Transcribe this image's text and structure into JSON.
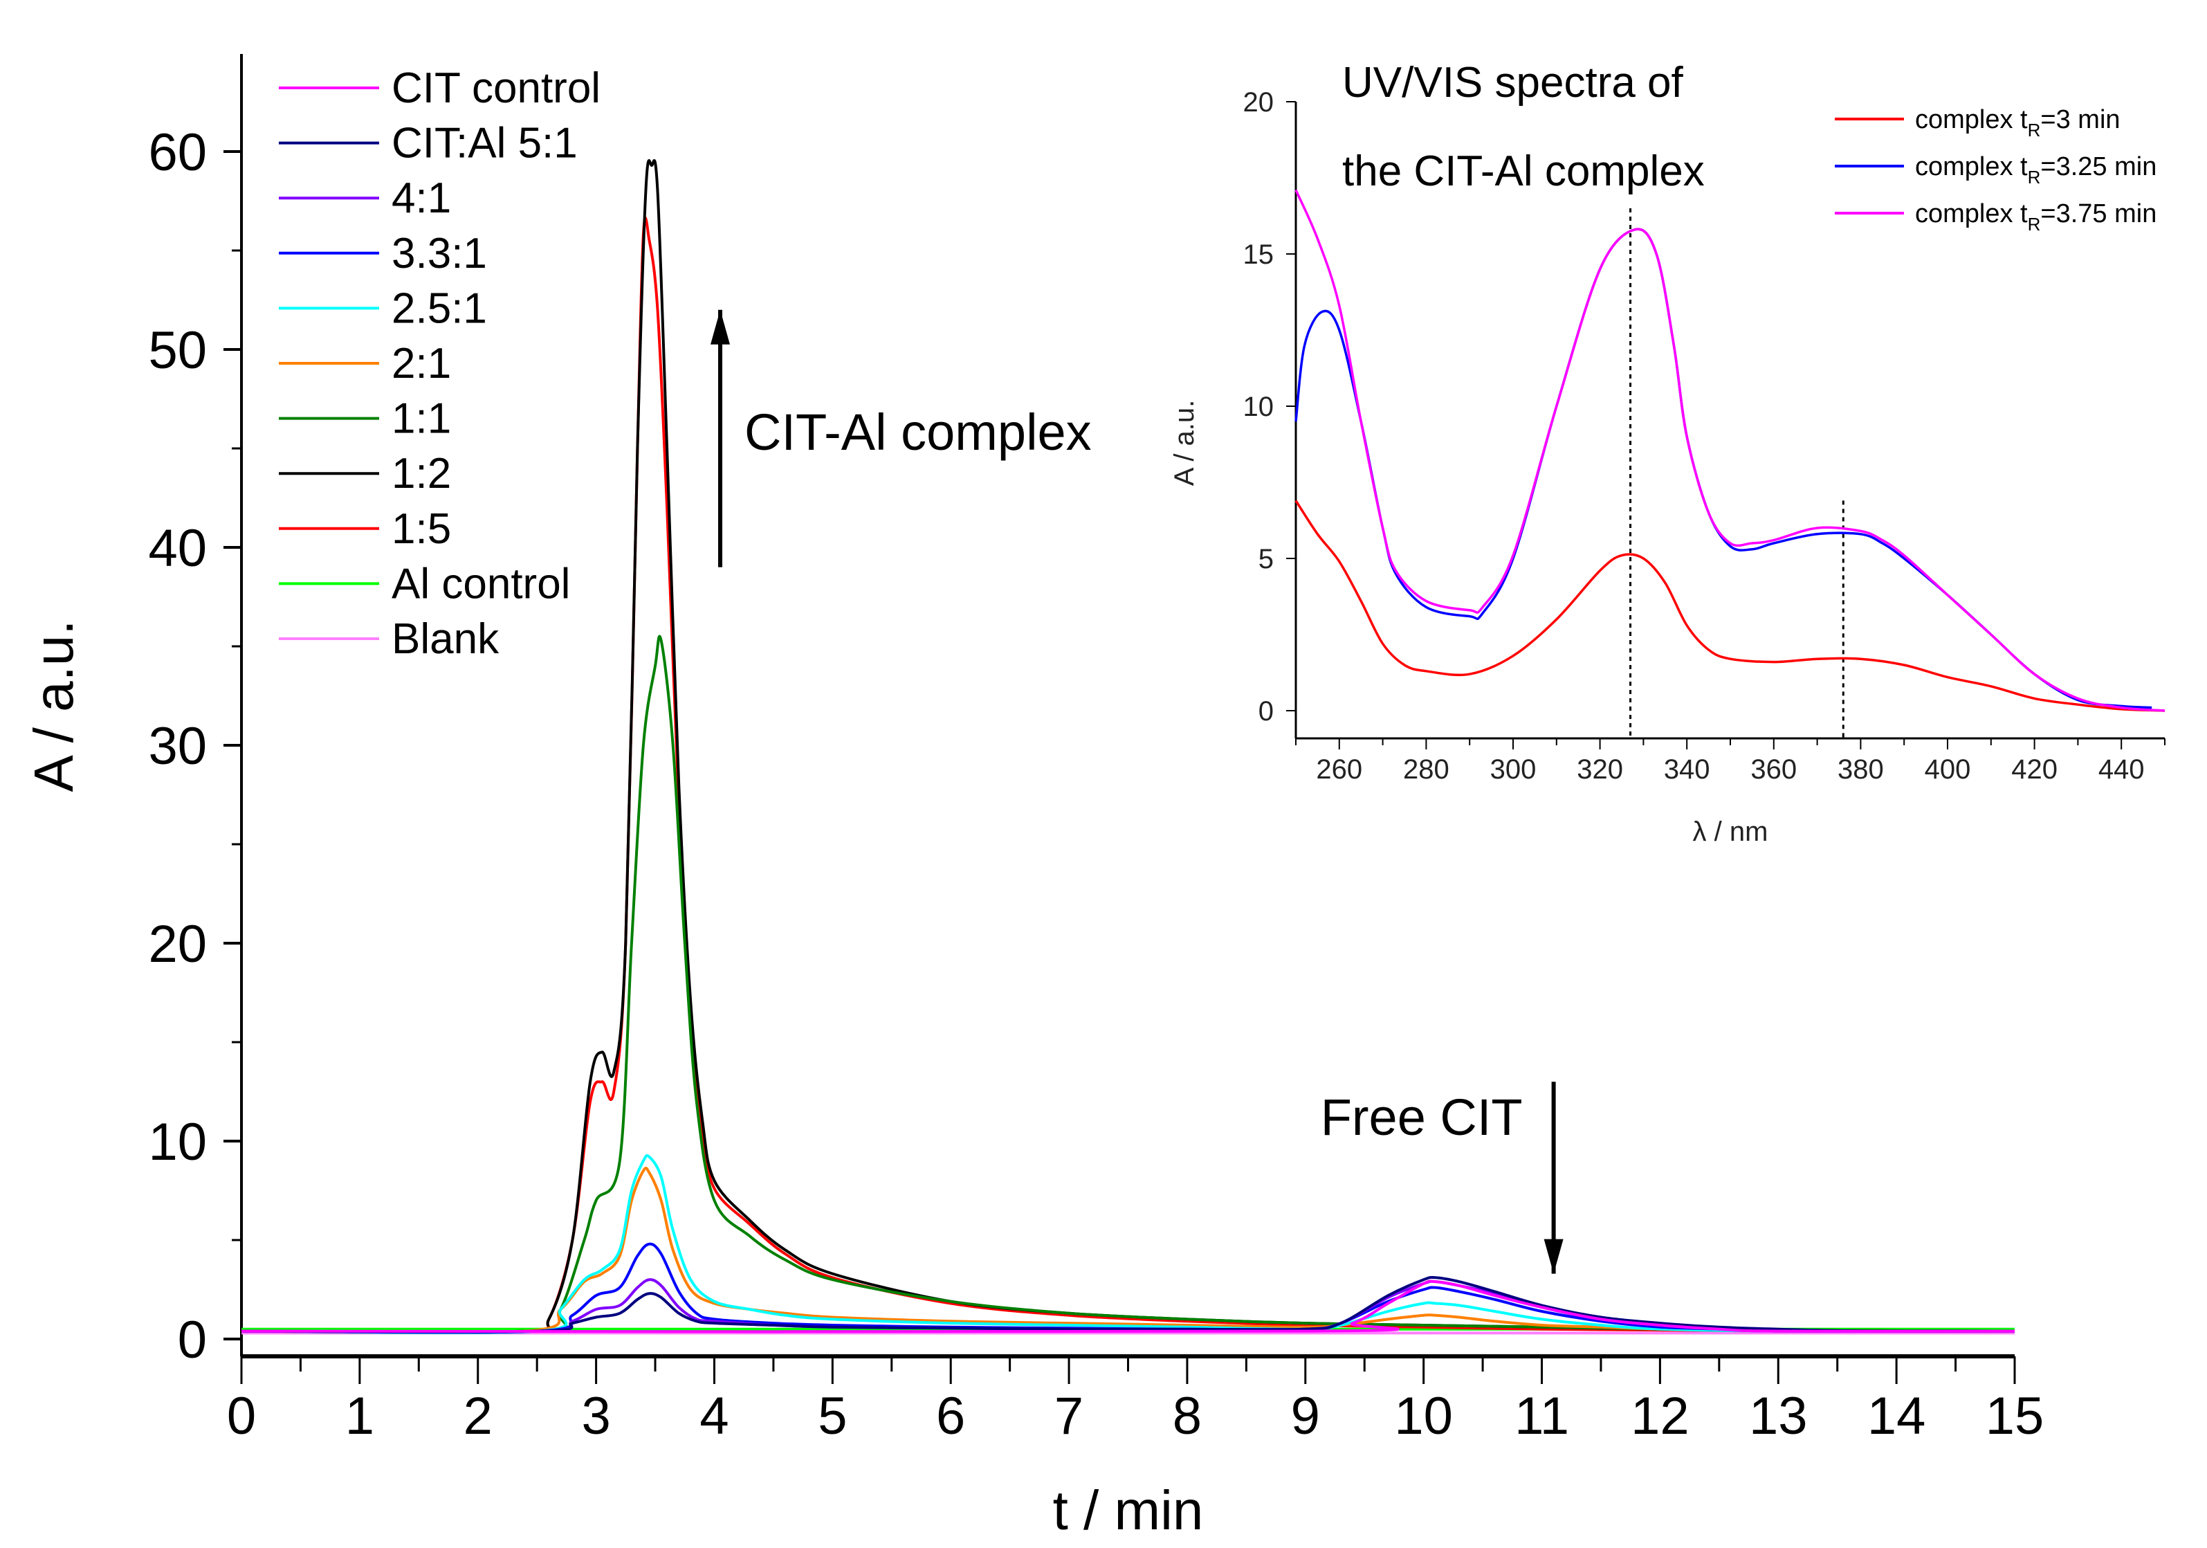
{
  "chart_data": [
    {
      "type": "line",
      "title": "",
      "xlabel": "t / min",
      "ylabel": "A / a.u.",
      "xlim": [
        0,
        15
      ],
      "ylim": [
        0,
        60
      ],
      "xticks": [
        "0",
        "1",
        "2",
        "3",
        "4",
        "5",
        "6",
        "7",
        "8",
        "9",
        "10",
        "11",
        "12",
        "13",
        "14",
        "15"
      ],
      "yticks": [
        "0",
        "10",
        "20",
        "30",
        "40",
        "50",
        "60"
      ],
      "legend_position": "top-left",
      "annotations": [
        {
          "text": "CIT-Al complex",
          "arrow": "up",
          "x": 4.05,
          "y_from": 39,
          "y_to": 52
        },
        {
          "text": "Free CIT",
          "arrow": "down",
          "x": 11.1,
          "y_from": 13,
          "y_to": 3.3
        }
      ],
      "series": [
        {
          "name": "CIT control",
          "color": "#ff00ff",
          "x": [
            0,
            9,
            9.4,
            9.7,
            10.0,
            10.1,
            10.3,
            10.6,
            11.0,
            11.5,
            12.0,
            12.5,
            13,
            15
          ],
          "y": [
            0.4,
            0.4,
            0.8,
            1.8,
            2.8,
            2.9,
            2.7,
            2.2,
            1.6,
            1.0,
            0.7,
            0.5,
            0.4,
            0.4
          ]
        },
        {
          "name": "CIT:Al 5:1",
          "color": "#000080",
          "x": [
            0,
            2.5,
            2.8,
            3.0,
            3.2,
            3.35,
            3.45,
            3.55,
            3.7,
            3.85,
            4.0,
            4.5,
            5,
            6,
            7,
            8,
            9,
            9.3,
            9.7,
            10.0,
            10.1,
            10.3,
            10.6,
            11.0,
            11.5,
            12.0,
            12.5,
            13,
            13.8,
            15
          ],
          "y": [
            0.4,
            0.4,
            0.8,
            1.1,
            1.3,
            2.0,
            2.3,
            2.1,
            1.3,
            0.9,
            0.8,
            0.7,
            0.6,
            0.55,
            0.5,
            0.5,
            0.5,
            0.8,
            2.2,
            3.0,
            3.1,
            2.9,
            2.4,
            1.7,
            1.1,
            0.8,
            0.6,
            0.5,
            0.4,
            0.4
          ]
        },
        {
          "name": "4:1",
          "color": "#8000ff",
          "x": [
            0,
            2.5,
            2.8,
            3.0,
            3.2,
            3.35,
            3.45,
            3.55,
            3.7,
            3.85,
            4.0,
            4.5,
            5,
            6,
            7,
            8,
            9,
            9.3,
            9.7,
            10.0,
            10.1,
            10.3,
            10.6,
            11.0,
            11.5,
            12.0,
            12.5,
            13,
            15
          ],
          "y": [
            0.4,
            0.4,
            0.9,
            1.5,
            1.7,
            2.6,
            3.0,
            2.7,
            1.6,
            1.0,
            0.9,
            0.7,
            0.6,
            0.55,
            0.5,
            0.5,
            0.5,
            0.8,
            2.1,
            2.8,
            2.9,
            2.7,
            2.3,
            1.6,
            1.0,
            0.7,
            0.5,
            0.4,
            0.4
          ]
        },
        {
          "name": "3.3:1",
          "color": "#0000ff",
          "x": [
            0,
            2.5,
            2.8,
            3.0,
            3.2,
            3.35,
            3.45,
            3.55,
            3.7,
            3.85,
            4.0,
            4.5,
            5,
            6,
            7,
            8,
            9,
            9.3,
            9.7,
            10.0,
            10.1,
            10.3,
            10.6,
            11.0,
            11.5,
            12.0,
            12.5,
            13,
            15
          ],
          "y": [
            0.4,
            0.4,
            1.2,
            2.2,
            2.6,
            4.2,
            4.8,
            4.3,
            2.4,
            1.3,
            1.0,
            0.8,
            0.7,
            0.6,
            0.55,
            0.5,
            0.5,
            0.8,
            1.9,
            2.5,
            2.6,
            2.4,
            2.0,
            1.4,
            0.9,
            0.6,
            0.5,
            0.4,
            0.4
          ]
        },
        {
          "name": "2.5:1",
          "color": "#00ffff",
          "x": [
            0,
            2.5,
            2.7,
            2.9,
            3.05,
            3.2,
            3.3,
            3.4,
            3.45,
            3.55,
            3.65,
            3.8,
            4.0,
            4.3,
            4.6,
            5,
            6,
            7,
            8,
            9,
            9.3,
            9.7,
            10.0,
            10.1,
            10.3,
            10.6,
            11.0,
            11.5,
            12.0,
            13,
            15
          ],
          "y": [
            0.4,
            0.4,
            1.5,
            3.0,
            3.5,
            4.5,
            7.5,
            9.0,
            9.2,
            8.2,
            5.5,
            3.0,
            1.9,
            1.5,
            1.2,
            1.0,
            0.8,
            0.7,
            0.6,
            0.5,
            0.7,
            1.4,
            1.8,
            1.8,
            1.7,
            1.4,
            1.0,
            0.7,
            0.5,
            0.4,
            0.4
          ]
        },
        {
          "name": "2:1",
          "color": "#ff8000",
          "x": [
            0,
            2.4,
            2.7,
            2.9,
            3.05,
            3.2,
            3.3,
            3.4,
            3.45,
            3.55,
            3.65,
            3.8,
            4.0,
            4.3,
            4.6,
            5,
            6,
            7,
            8,
            9,
            9.3,
            9.7,
            10.0,
            10.1,
            10.3,
            10.6,
            11.0,
            11.5,
            12.0,
            13,
            15
          ],
          "y": [
            0.4,
            0.4,
            1.5,
            2.9,
            3.3,
            4.2,
            7.0,
            8.5,
            8.4,
            7.0,
            4.5,
            2.5,
            1.8,
            1.5,
            1.3,
            1.1,
            0.9,
            0.8,
            0.7,
            0.6,
            0.7,
            1.0,
            1.2,
            1.2,
            1.1,
            0.9,
            0.7,
            0.6,
            0.5,
            0.4,
            0.4
          ]
        },
        {
          "name": "1:1",
          "color": "#008000",
          "x": [
            0,
            2.5,
            2.7,
            2.9,
            3.0,
            3.2,
            3.3,
            3.4,
            3.5,
            3.55,
            3.65,
            3.75,
            3.85,
            4.0,
            4.3,
            4.6,
            5,
            6,
            7,
            8,
            9,
            10,
            11,
            12,
            13,
            15
          ],
          "y": [
            0.4,
            0.4,
            1.5,
            5.0,
            7.0,
            9.0,
            20,
            30,
            34,
            35.3,
            30,
            20,
            12,
            7,
            5.2,
            4.0,
            3.0,
            1.9,
            1.3,
            1.0,
            0.8,
            0.7,
            0.6,
            0.5,
            0.45,
            0.4
          ]
        },
        {
          "name": "1:2",
          "color": "#000000",
          "x": [
            0,
            2.4,
            2.6,
            2.8,
            2.95,
            3.05,
            3.15,
            3.25,
            3.35,
            3.42,
            3.47,
            3.52,
            3.6,
            3.7,
            3.8,
            3.9,
            4.0,
            4.3,
            4.6,
            5,
            6,
            7,
            8,
            9,
            10,
            11,
            12,
            13,
            15
          ],
          "y": [
            0.4,
            0.4,
            1.0,
            5.0,
            13.0,
            14.5,
            13.5,
            20,
            45,
            58,
            59.3,
            58,
            45,
            28,
            17,
            11,
            8,
            6,
            4.5,
            3.3,
            1.9,
            1.3,
            1.0,
            0.8,
            0.7,
            0.6,
            0.5,
            0.45,
            0.4
          ]
        },
        {
          "name": "1:5",
          "color": "#ff0000",
          "x": [
            0,
            2.4,
            2.6,
            2.8,
            2.95,
            3.05,
            3.15,
            3.25,
            3.35,
            3.4,
            3.45,
            3.52,
            3.6,
            3.7,
            3.8,
            3.9,
            4.0,
            4.3,
            4.6,
            5,
            6,
            7,
            8,
            9,
            10,
            11,
            12,
            13,
            15
          ],
          "y": [
            0.4,
            0.4,
            1.0,
            5.0,
            12.0,
            13.0,
            12.5,
            20,
            45,
            55.8,
            55.5,
            52,
            42,
            27,
            16,
            10.5,
            7.6,
            5.8,
            4.3,
            3.1,
            1.8,
            1.2,
            0.9,
            0.7,
            0.6,
            0.5,
            0.45,
            0.4,
            0.4
          ]
        },
        {
          "name": "Al control",
          "color": "#00ff00",
          "x": [
            0,
            15
          ],
          "y": [
            0.5,
            0.5
          ]
        },
        {
          "name": "Blank",
          "color": "#ff80ff",
          "x": [
            0,
            15
          ],
          "y": [
            0.3,
            0.3
          ]
        }
      ]
    },
    {
      "type": "line",
      "title": [
        "UV/VIS spectra of",
        "the CIT-Al complex"
      ],
      "xlabel": "λ / nm",
      "ylabel": "A / a.u.",
      "xlim": [
        250,
        450
      ],
      "ylim": [
        0,
        20
      ],
      "xticks": [
        "260",
        "280",
        "300",
        "320",
        "340",
        "360",
        "380",
        "400",
        "420",
        "440"
      ],
      "yticks": [
        "0",
        "5",
        "10",
        "15",
        "20"
      ],
      "legend_position": "top-right",
      "reference_lines_x": [
        327,
        376
      ],
      "series": [
        {
          "name": "complex t",
          "sub": "R",
          "suffix": "=3 min",
          "color": "#ff0000",
          "x": [
            250,
            255,
            260,
            265,
            270,
            275,
            280,
            290,
            300,
            310,
            320,
            325,
            330,
            335,
            340,
            345,
            350,
            360,
            370,
            380,
            390,
            400,
            410,
            420,
            430,
            440,
            450
          ],
          "y": [
            6.9,
            5.8,
            4.9,
            3.6,
            2.2,
            1.5,
            1.3,
            1.2,
            1.8,
            3.0,
            4.6,
            5.1,
            5.0,
            4.2,
            2.8,
            2.0,
            1.7,
            1.6,
            1.7,
            1.7,
            1.5,
            1.1,
            0.8,
            0.4,
            0.2,
            0.05,
            0
          ]
        },
        {
          "name": "complex t",
          "sub": "R",
          "suffix": "=3.25 min",
          "color": "#0000ff",
          "x": [
            250,
            252,
            256,
            260,
            265,
            270,
            273,
            280,
            290,
            293,
            300,
            310,
            320,
            328,
            333,
            337,
            340,
            345,
            350,
            355,
            360,
            370,
            380,
            385,
            390,
            400,
            410,
            420,
            430,
            440,
            447
          ],
          "y": [
            9.5,
            12.0,
            13.1,
            12.5,
            9.5,
            6.0,
            4.5,
            3.4,
            3.1,
            3.2,
            5.0,
            10.0,
            14.5,
            15.8,
            15.0,
            12.0,
            9.0,
            6.5,
            5.4,
            5.3,
            5.5,
            5.8,
            5.8,
            5.5,
            5.0,
            3.8,
            2.5,
            1.2,
            0.35,
            0.15,
            0.1
          ]
        },
        {
          "name": "complex t",
          "sub": "R",
          "suffix": "=3.75 min",
          "color": "#ff00ff",
          "x": [
            250,
            255,
            260,
            265,
            270,
            273,
            280,
            290,
            293,
            300,
            310,
            320,
            328,
            333,
            337,
            340,
            345,
            350,
            355,
            360,
            370,
            380,
            385,
            390,
            400,
            410,
            420,
            430,
            440,
            450
          ],
          "y": [
            17.1,
            15.5,
            13.3,
            9.5,
            6.0,
            4.6,
            3.6,
            3.3,
            3.4,
            5.1,
            10.0,
            14.5,
            15.8,
            15.0,
            12.0,
            9.0,
            6.5,
            5.5,
            5.5,
            5.6,
            6.0,
            5.9,
            5.6,
            5.1,
            3.8,
            2.5,
            1.2,
            0.4,
            0.1,
            0
          ]
        }
      ]
    }
  ]
}
